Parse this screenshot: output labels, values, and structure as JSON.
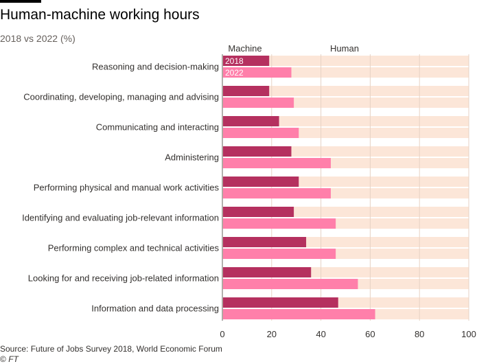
{
  "header": {
    "title": "Human-machine working hours",
    "subtitle": "2018 vs 2022 (%)"
  },
  "footer": {
    "source": "Source: Future of Jobs Survey 2018, World Economic Forum",
    "credit_symbol": "©",
    "credit_name": "FT"
  },
  "chart_data": {
    "type": "bar",
    "orientation": "horizontal",
    "title": "Human-machine working hours",
    "subtitle": "2018 vs 2022 (%)",
    "xlim": [
      0,
      100
    ],
    "xticks": [
      "0",
      "20",
      "40",
      "60",
      "80",
      "100"
    ],
    "grid": true,
    "column_labels": [
      "Machine",
      "Human"
    ],
    "categories": [
      "Reasoning and decision-making",
      "Coordinating, developing, managing and advising",
      "Communicating and interacting",
      "Administering",
      "Performing physical and manual work activities",
      "Identifying and evaluating job-relevant information",
      "Performing complex and technical activities",
      "Looking for and receiving job-related information",
      "Information and data processing"
    ],
    "series": [
      {
        "name": "2018",
        "color": "#b5305f",
        "values": [
          19,
          19,
          23,
          28,
          31,
          29,
          34,
          36,
          47
        ]
      },
      {
        "name": "2022",
        "color": "#ff7faa",
        "values": [
          28,
          29,
          31,
          44,
          44,
          46,
          46,
          55,
          62
        ]
      }
    ],
    "background_color": "#fce6d8"
  }
}
